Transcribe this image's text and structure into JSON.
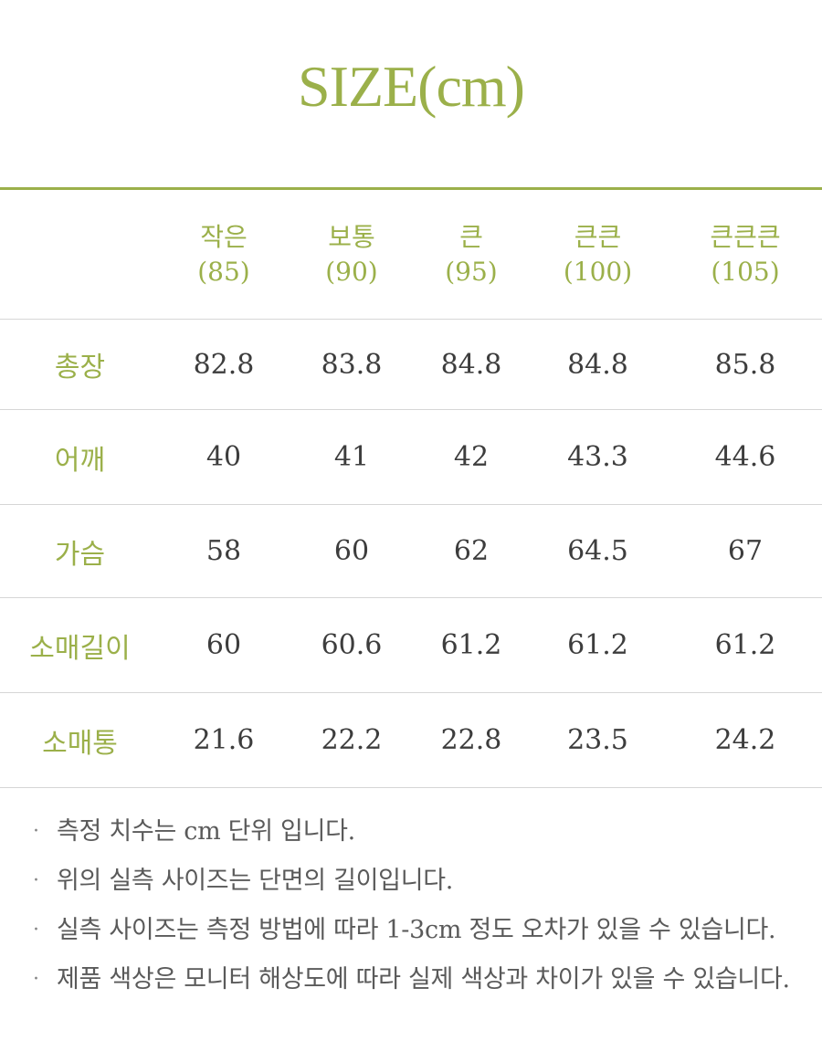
{
  "title": "SIZE(cm)",
  "table": {
    "columns": [
      {
        "name": "작은",
        "size": "(85)"
      },
      {
        "name": "보통",
        "size": "(90)"
      },
      {
        "name": "큰",
        "size": "(95)"
      },
      {
        "name": "큰큰",
        "size": "(100)"
      },
      {
        "name": "큰큰큰",
        "size": "(105)"
      }
    ],
    "rows": [
      {
        "label": "총장",
        "values": [
          "82.8",
          "83.8",
          "84.8",
          "84.8",
          "85.8"
        ]
      },
      {
        "label": "어깨",
        "values": [
          "40",
          "41",
          "42",
          "43.3",
          "44.6"
        ]
      },
      {
        "label": "가슴",
        "values": [
          "58",
          "60",
          "62",
          "64.5",
          "67"
        ]
      },
      {
        "label": "소매길이",
        "values": [
          "60",
          "60.6",
          "61.2",
          "61.2",
          "61.2"
        ]
      },
      {
        "label": "소매통",
        "values": [
          "21.6",
          "22.2",
          "22.8",
          "23.5",
          "24.2"
        ]
      }
    ]
  },
  "notes": [
    "측정 치수는 cm 단위 입니다.",
    "위의 실측 사이즈는 단면의 길이입니다.",
    "실측 사이즈는 측정 방법에 따라 1-3cm 정도 오차가 있을 수 있습니다.",
    "제품 색상은 모니터 해상도에 따라 실제 색상과 차이가 있을 수 있습니다."
  ],
  "colors": {
    "accent": "#9bb04a",
    "text": "#3d3d3d",
    "rule": "#d6d6d6"
  }
}
